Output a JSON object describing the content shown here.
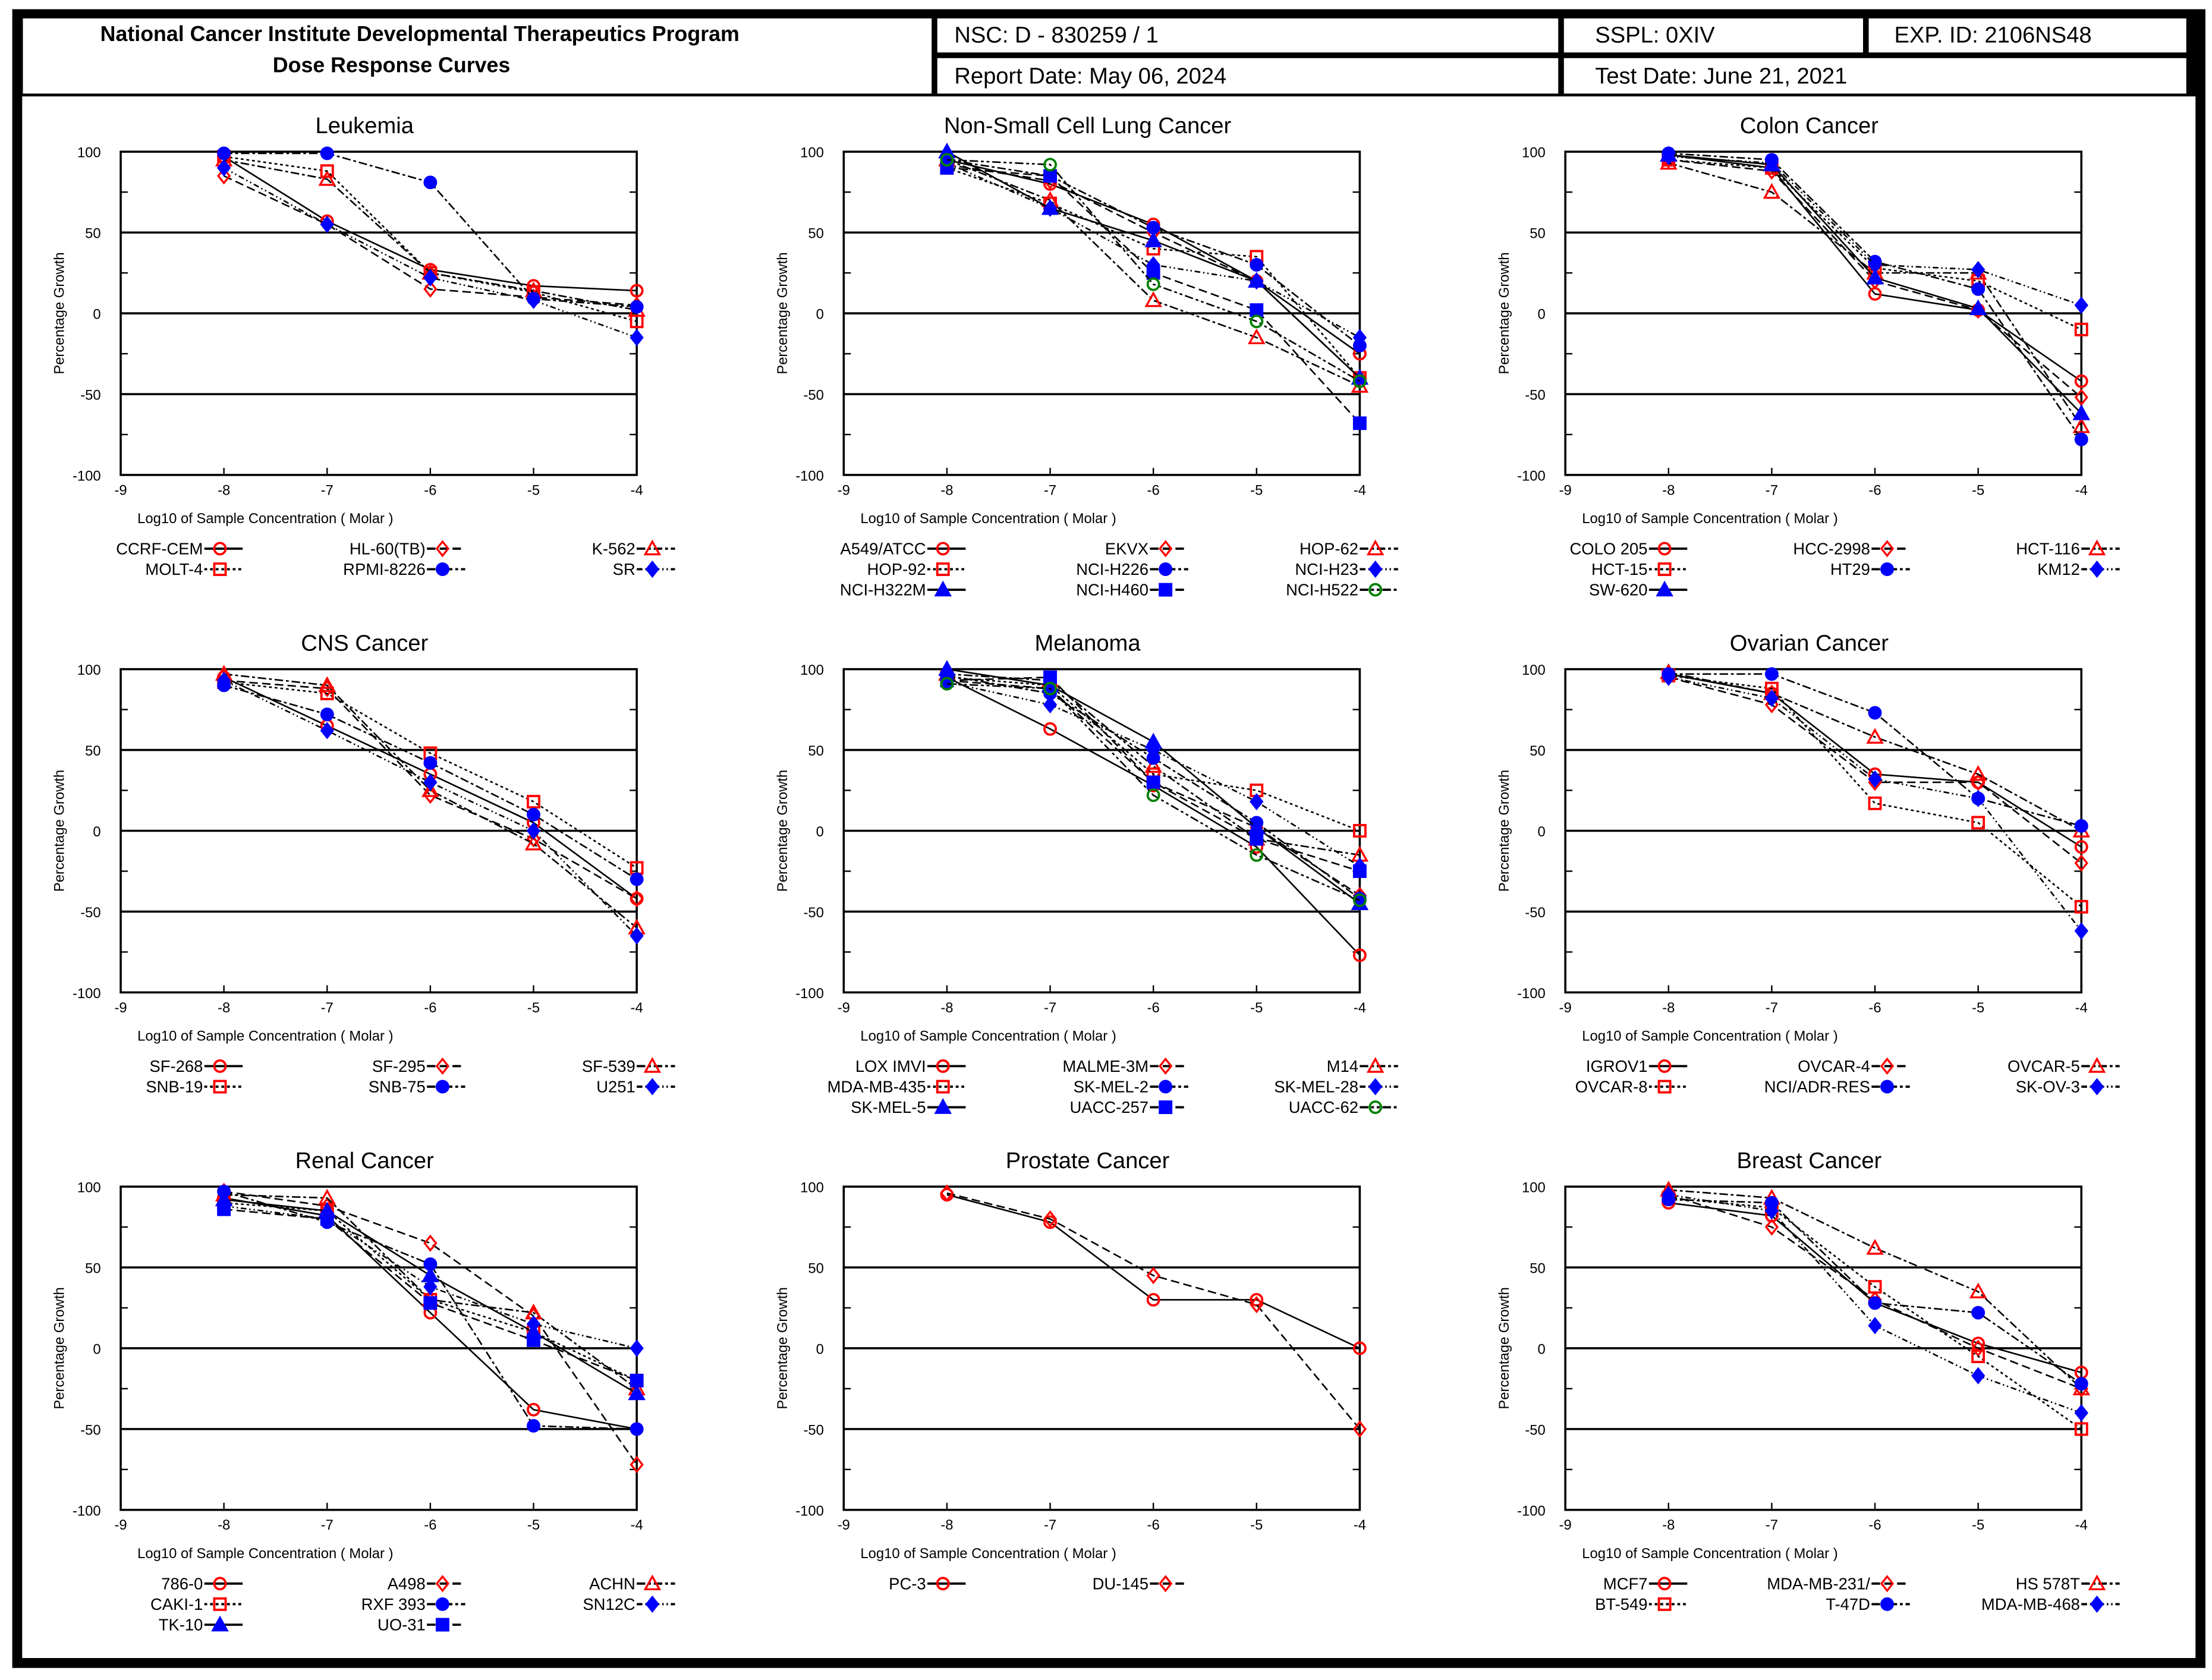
{
  "header": {
    "title_line1": "National Cancer Institute Developmental Therapeutics Program",
    "title_line2": "Dose Response Curves",
    "nsc": "NSC: D - 830259 / 1",
    "sspl": "SSPL: 0XIV",
    "exp_id": "EXP. ID: 2106NS48",
    "report_date": "Report Date: May 06, 2024",
    "test_date": "Test Date: June 21, 2021"
  },
  "colors": {
    "red": "#ff0000",
    "blue": "#0000ff",
    "green": "#008000"
  },
  "chart_data": [
    {
      "type": "line",
      "title": "Leukemia",
      "xlabel": "Log10 of Sample Concentration ( Molar )",
      "ylabel": "Percentage Growth",
      "x": [
        -8,
        -7,
        -6,
        -5,
        -4
      ],
      "xlim": [
        -9,
        -4
      ],
      "ylim": [
        -100,
        100
      ],
      "xticks": [
        "-9",
        "-8",
        "-7",
        "-6",
        "-5",
        "-4"
      ],
      "yticks": [
        "100",
        "50",
        "0",
        "-50",
        "-100"
      ],
      "series": [
        {
          "name": "CCRF-CEM",
          "values": [
            97,
            57,
            27,
            17,
            14
          ]
        },
        {
          "name": "HL-60(TB)",
          "values": [
            85,
            55,
            15,
            10,
            5
          ]
        },
        {
          "name": "K-562",
          "values": [
            95,
            83,
            25,
            14,
            2
          ]
        },
        {
          "name": "MOLT-4",
          "values": [
            97,
            88,
            25,
            13,
            -5
          ]
        },
        {
          "name": "RPMI-8226",
          "values": [
            99,
            99,
            81,
            9,
            4
          ]
        },
        {
          "name": "SR",
          "values": [
            90,
            55,
            22,
            8,
            -15
          ]
        }
      ]
    },
    {
      "type": "line",
      "title": "Non-Small Cell Lung Cancer",
      "xlabel": "Log10 of Sample Concentration ( Molar )",
      "ylabel": "Percentage Growth",
      "x": [
        -8,
        -7,
        -6,
        -5,
        -4
      ],
      "xlim": [
        -9,
        -4
      ],
      "ylim": [
        -100,
        100
      ],
      "xticks": [
        "-9",
        "-8",
        "-7",
        "-6",
        "-5",
        "-4"
      ],
      "yticks": [
        "100",
        "50",
        "0",
        "-50",
        "-100"
      ],
      "series": [
        {
          "name": "A549/ATCC",
          "values": [
            95,
            80,
            55,
            20,
            -25
          ]
        },
        {
          "name": "EKVX",
          "values": [
            92,
            82,
            50,
            20,
            -40
          ]
        },
        {
          "name": "HOP-62",
          "values": [
            95,
            70,
            8,
            -15,
            -45
          ]
        },
        {
          "name": "HOP-92",
          "values": [
            90,
            68,
            40,
            35,
            -40
          ]
        },
        {
          "name": "NCI-H226",
          "values": [
            95,
            85,
            53,
            30,
            -20
          ]
        },
        {
          "name": "NCI-H23",
          "values": [
            93,
            65,
            30,
            20,
            -15
          ]
        },
        {
          "name": "NCI-H322M",
          "values": [
            100,
            65,
            45,
            20,
            -40
          ]
        },
        {
          "name": "NCI-H460",
          "values": [
            90,
            85,
            25,
            2,
            -68
          ]
        },
        {
          "name": "NCI-H522",
          "values": [
            95,
            92,
            18,
            -5,
            -42
          ]
        }
      ]
    },
    {
      "type": "line",
      "title": "Colon Cancer",
      "xlabel": "Log10 of Sample Concentration ( Molar )",
      "ylabel": "Percentage Growth",
      "x": [
        -8,
        -7,
        -6,
        -5,
        -4
      ],
      "xlim": [
        -9,
        -4
      ],
      "ylim": [
        -100,
        100
      ],
      "xticks": [
        "-9",
        "-8",
        "-7",
        "-6",
        "-5",
        "-4"
      ],
      "yticks": [
        "100",
        "50",
        "0",
        "-50",
        "-100"
      ],
      "series": [
        {
          "name": "COLO 205",
          "values": [
            98,
            90,
            12,
            2,
            -42
          ]
        },
        {
          "name": "HCC-2998",
          "values": [
            95,
            88,
            20,
            2,
            -52
          ]
        },
        {
          "name": "HCT-116",
          "values": [
            93,
            75,
            25,
            25,
            -70
          ]
        },
        {
          "name": "HCT-15",
          "values": [
            95,
            90,
            28,
            20,
            -10
          ]
        },
        {
          "name": "HT29",
          "values": [
            99,
            95,
            32,
            15,
            -78
          ]
        },
        {
          "name": "KM12",
          "values": [
            97,
            93,
            30,
            27,
            5
          ]
        },
        {
          "name": "SW-620",
          "values": [
            98,
            92,
            22,
            3,
            -62
          ]
        }
      ]
    },
    {
      "type": "line",
      "title": "CNS Cancer",
      "xlabel": "Log10 of Sample Concentration ( Molar )",
      "ylabel": "Percentage Growth",
      "x": [
        -8,
        -7,
        -6,
        -5,
        -4
      ],
      "xlim": [
        -9,
        -4
      ],
      "ylim": [
        -100,
        100
      ],
      "xticks": [
        "-9",
        "-8",
        "-7",
        "-6",
        "-5",
        "-4"
      ],
      "yticks": [
        "100",
        "50",
        "0",
        "-50",
        "-100"
      ],
      "series": [
        {
          "name": "SF-268",
          "values": [
            95,
            65,
            35,
            5,
            -42
          ]
        },
        {
          "name": "SF-295",
          "values": [
            93,
            88,
            22,
            -5,
            -42
          ]
        },
        {
          "name": "SF-539",
          "values": [
            97,
            90,
            25,
            -8,
            -60
          ]
        },
        {
          "name": "SNB-19",
          "values": [
            92,
            85,
            48,
            18,
            -23
          ]
        },
        {
          "name": "SNB-75",
          "values": [
            90,
            72,
            42,
            10,
            -30
          ]
        },
        {
          "name": "U251",
          "values": [
            93,
            62,
            30,
            0,
            -65
          ]
        }
      ]
    },
    {
      "type": "line",
      "title": "Melanoma",
      "xlabel": "Log10 of Sample Concentration ( Molar )",
      "ylabel": "Percentage Growth",
      "x": [
        -8,
        -7,
        -6,
        -5,
        -4
      ],
      "xlim": [
        -9,
        -4
      ],
      "ylim": [
        -100,
        100
      ],
      "xticks": [
        "-9",
        "-8",
        "-7",
        "-6",
        "-5",
        "-4"
      ],
      "yticks": [
        "100",
        "50",
        "0",
        "-50",
        "-100"
      ],
      "series": [
        {
          "name": "LOX IMVI",
          "values": [
            95,
            63,
            28,
            -10,
            -77
          ]
        },
        {
          "name": "MALME-3M",
          "values": [
            93,
            88,
            30,
            2,
            -40
          ]
        },
        {
          "name": "M14",
          "values": [
            97,
            93,
            40,
            -5,
            -15
          ]
        },
        {
          "name": "MDA-MB-435",
          "values": [
            95,
            90,
            35,
            25,
            0
          ]
        },
        {
          "name": "SK-MEL-2",
          "values": [
            96,
            85,
            45,
            5,
            -42
          ]
        },
        {
          "name": "SK-MEL-28",
          "values": [
            92,
            78,
            50,
            18,
            -22
          ]
        },
        {
          "name": "SK-MEL-5",
          "values": [
            100,
            90,
            55,
            2,
            -45
          ]
        },
        {
          "name": "UACC-257",
          "values": [
            93,
            95,
            30,
            -5,
            -25
          ]
        },
        {
          "name": "UACC-62",
          "values": [
            91,
            88,
            22,
            -15,
            -43
          ]
        }
      ]
    },
    {
      "type": "line",
      "title": "Ovarian Cancer",
      "xlabel": "Log10 of Sample Concentration ( Molar )",
      "ylabel": "Percentage Growth",
      "x": [
        -8,
        -7,
        -6,
        -5,
        -4
      ],
      "xlim": [
        -9,
        -4
      ],
      "ylim": [
        -100,
        100
      ],
      "xticks": [
        "-9",
        "-8",
        "-7",
        "-6",
        "-5",
        "-4"
      ],
      "yticks": [
        "100",
        "50",
        "0",
        "-50",
        "-100"
      ],
      "series": [
        {
          "name": "IGROV1",
          "values": [
            97,
            85,
            35,
            30,
            -10
          ]
        },
        {
          "name": "OVCAR-4",
          "values": [
            95,
            78,
            30,
            30,
            -20
          ]
        },
        {
          "name": "OVCAR-5",
          "values": [
            98,
            85,
            58,
            35,
            0
          ]
        },
        {
          "name": "OVCAR-8",
          "values": [
            96,
            88,
            17,
            5,
            -47
          ]
        },
        {
          "name": "NCI/ADR-RES",
          "values": [
            97,
            97,
            73,
            20,
            3
          ]
        },
        {
          "name": "SK-OV-3",
          "values": [
            95,
            82,
            32,
            20,
            -62
          ]
        }
      ]
    },
    {
      "type": "line",
      "title": "Renal Cancer",
      "xlabel": "Log10 of Sample Concentration ( Molar )",
      "ylabel": "Percentage Growth",
      "x": [
        -8,
        -7,
        -6,
        -5,
        -4
      ],
      "xlim": [
        -9,
        -4
      ],
      "ylim": [
        -100,
        100
      ],
      "xticks": [
        "-9",
        "-8",
        "-7",
        "-6",
        "-5",
        "-4"
      ],
      "yticks": [
        "100",
        "50",
        "0",
        "-50",
        "-100"
      ],
      "series": [
        {
          "name": "786-0",
          "values": [
            93,
            82,
            22,
            -38,
            -50
          ]
        },
        {
          "name": "A498",
          "values": [
            97,
            88,
            65,
            20,
            -72
          ]
        },
        {
          "name": "ACHN",
          "values": [
            95,
            93,
            30,
            22,
            -25
          ]
        },
        {
          "name": "CAKI-1",
          "values": [
            90,
            85,
            30,
            10,
            -20
          ]
        },
        {
          "name": "RXF 393",
          "values": [
            97,
            78,
            52,
            -48,
            -50
          ]
        },
        {
          "name": "SN12C",
          "values": [
            88,
            80,
            38,
            15,
            0
          ]
        },
        {
          "name": "TK-10",
          "values": [
            92,
            85,
            45,
            10,
            -28
          ]
        },
        {
          "name": "UO-31",
          "values": [
            86,
            80,
            28,
            5,
            -20
          ]
        }
      ]
    },
    {
      "type": "line",
      "title": "Prostate Cancer",
      "xlabel": "Log10 of Sample Concentration ( Molar )",
      "ylabel": "Percentage Growth",
      "x": [
        -8,
        -7,
        -6,
        -5,
        -4
      ],
      "xlim": [
        -9,
        -4
      ],
      "ylim": [
        -100,
        100
      ],
      "xticks": [
        "-9",
        "-8",
        "-7",
        "-6",
        "-5",
        "-4"
      ],
      "yticks": [
        "100",
        "50",
        "0",
        "-50",
        "-100"
      ],
      "series": [
        {
          "name": "PC-3",
          "values": [
            95,
            78,
            30,
            30,
            0
          ]
        },
        {
          "name": "DU-145",
          "values": [
            96,
            80,
            45,
            27,
            -50
          ]
        }
      ]
    },
    {
      "type": "line",
      "title": "Breast Cancer",
      "xlabel": "Log10 of Sample Concentration ( Molar )",
      "ylabel": "Percentage Growth",
      "x": [
        -8,
        -7,
        -6,
        -5,
        -4
      ],
      "xlim": [
        -9,
        -4
      ],
      "ylim": [
        -100,
        100
      ],
      "xticks": [
        "-9",
        "-8",
        "-7",
        "-6",
        "-5",
        "-4"
      ],
      "yticks": [
        "100",
        "50",
        "0",
        "-50",
        "-100"
      ],
      "series": [
        {
          "name": "MCF7",
          "values": [
            90,
            82,
            28,
            3,
            -15
          ]
        },
        {
          "name": "MDA-MB-231/",
          "values": [
            95,
            75,
            30,
            0,
            -25
          ]
        },
        {
          "name": "HS 578T",
          "values": [
            98,
            93,
            62,
            35,
            -25
          ]
        },
        {
          "name": "BT-549",
          "values": [
            93,
            87,
            38,
            -5,
            -50
          ]
        },
        {
          "name": "T-47D",
          "values": [
            92,
            90,
            28,
            22,
            -22
          ]
        },
        {
          "name": "MDA-MB-468",
          "values": [
            95,
            85,
            14,
            -17,
            -40
          ]
        }
      ]
    }
  ]
}
